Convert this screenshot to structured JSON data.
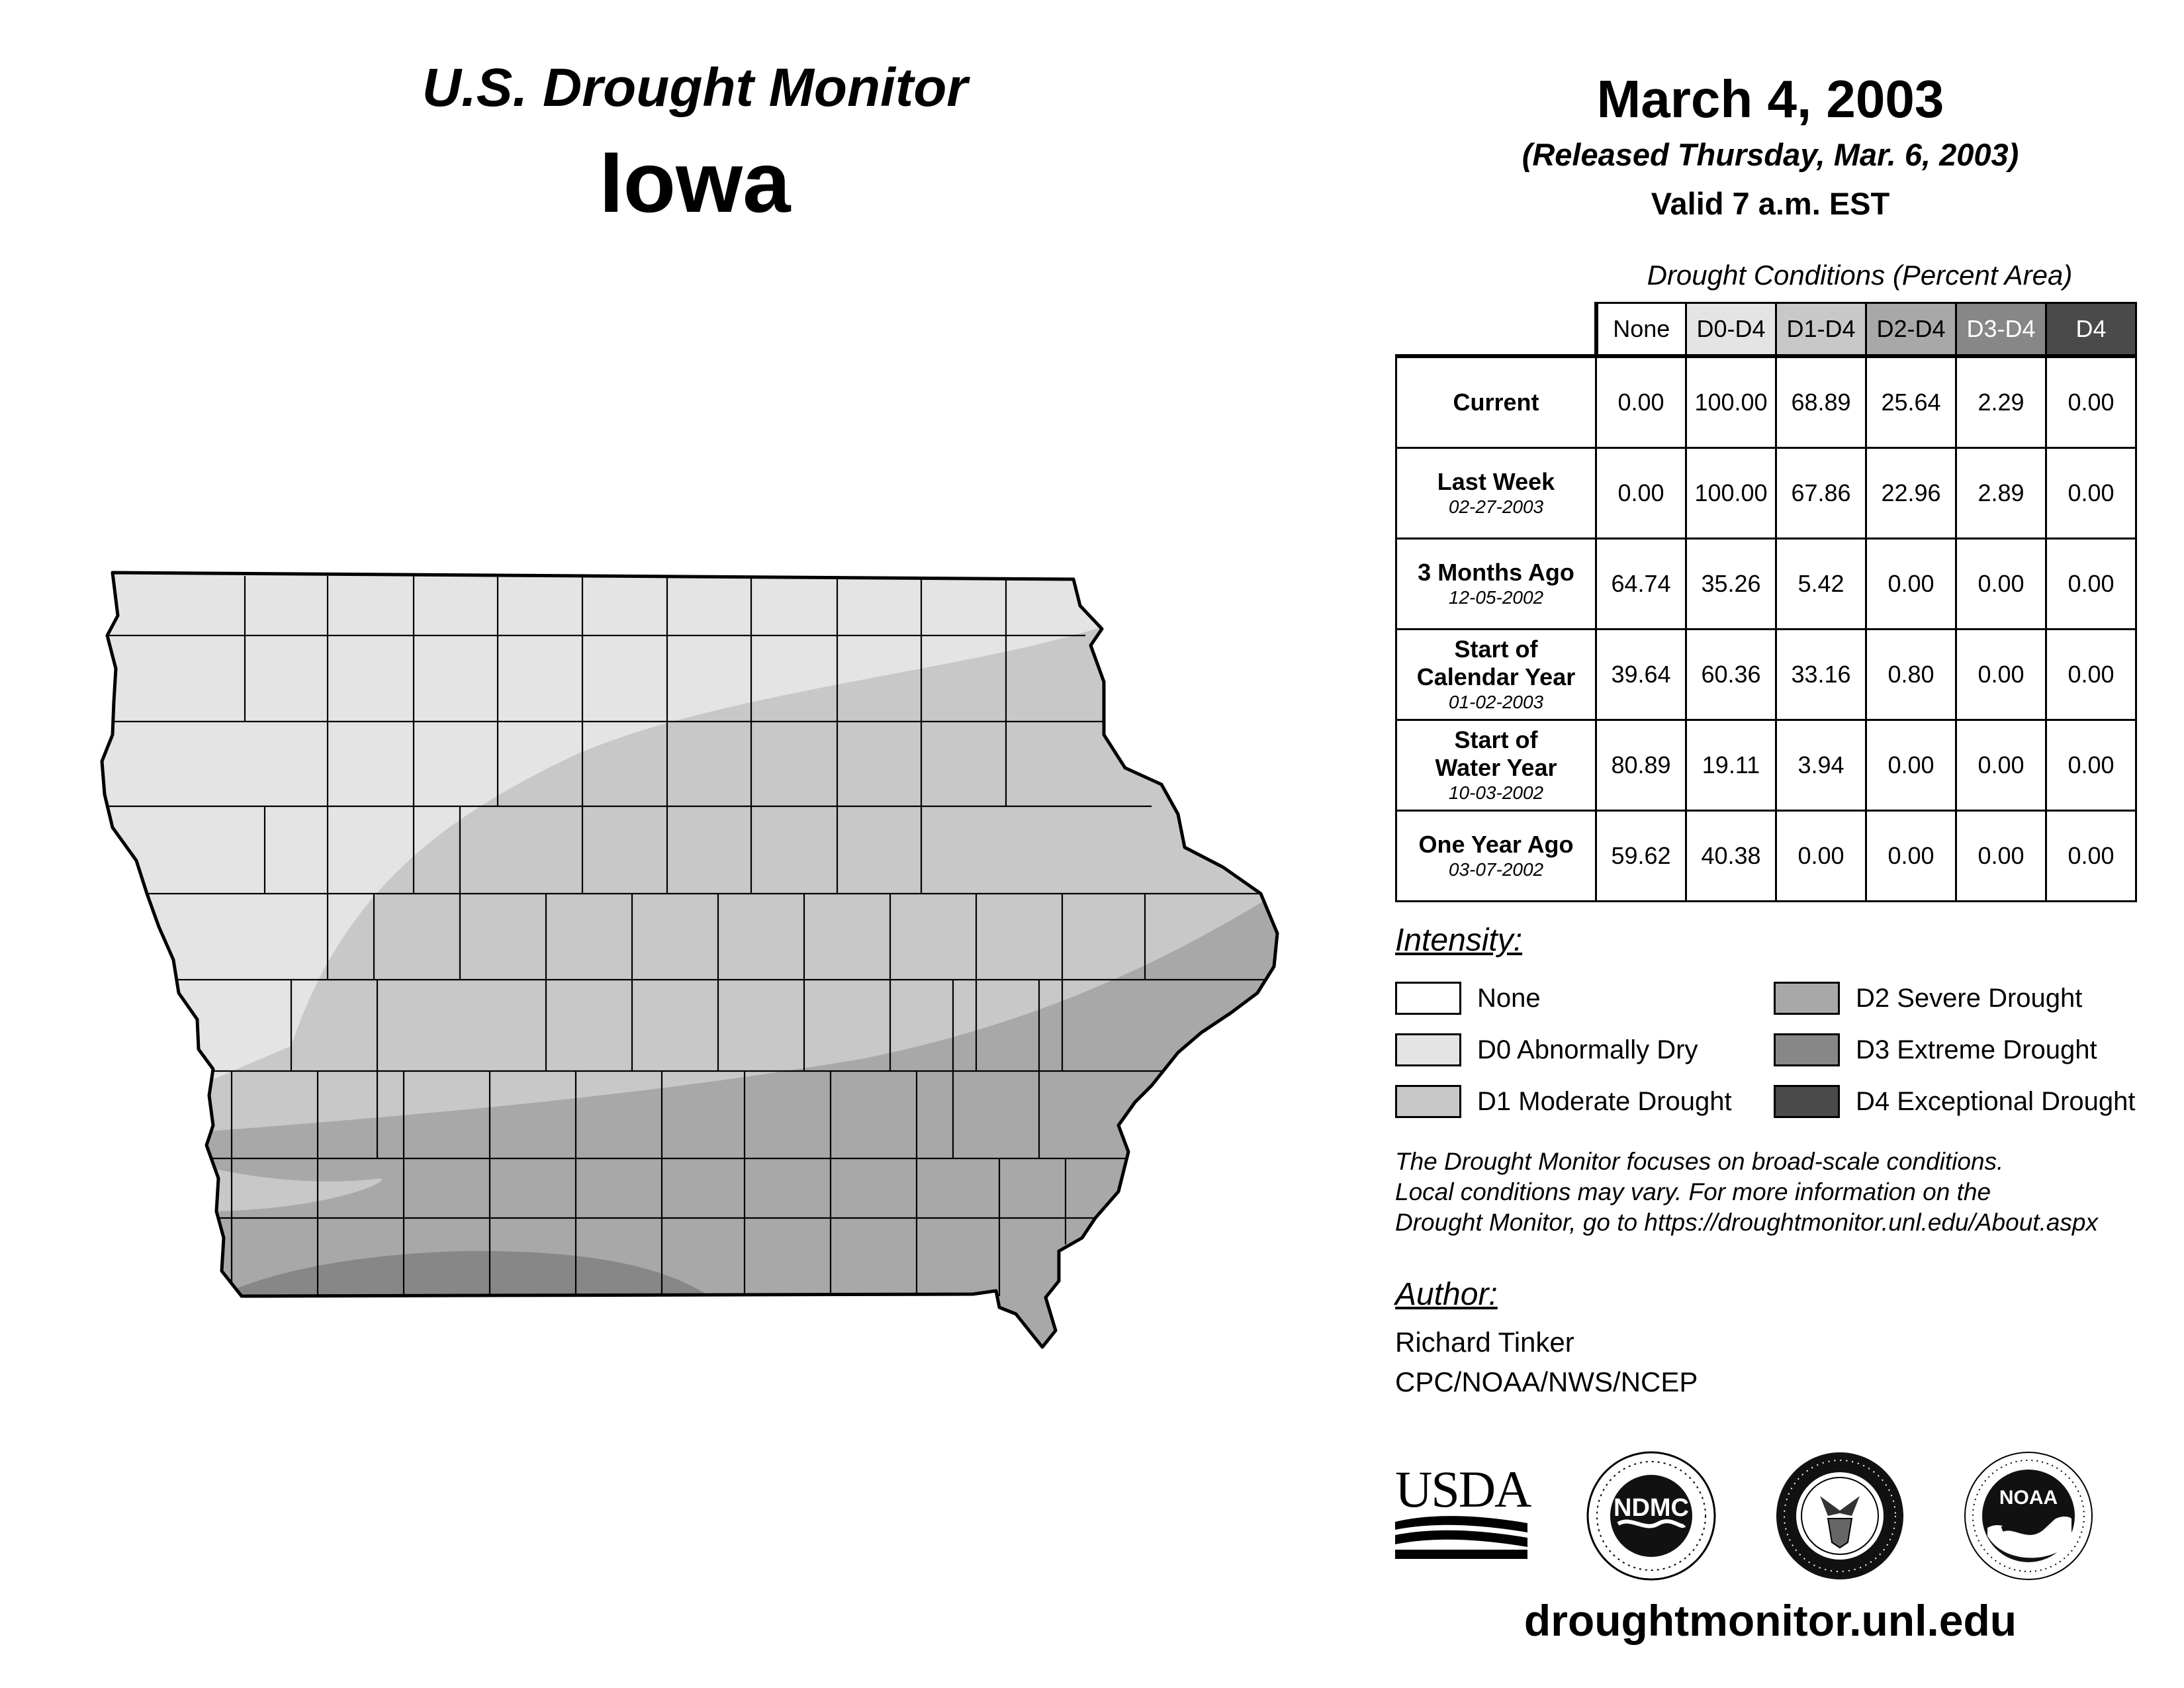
{
  "header": {
    "title": "U.S. Drought Monitor",
    "state": "Iowa",
    "date": "March 4, 2003",
    "released": "(Released Thursday, Mar. 6, 2003)",
    "valid": "Valid 7 a.m. EST"
  },
  "table": {
    "caption": "Drought Conditions (Percent Area)",
    "columns": [
      "None",
      "D0-D4",
      "D1-D4",
      "D2-D4",
      "D3-D4",
      "D4"
    ],
    "rows": [
      {
        "label": "Current",
        "sub": "",
        "values": [
          "0.00",
          "100.00",
          "68.89",
          "25.64",
          "2.29",
          "0.00"
        ]
      },
      {
        "label": "Last Week",
        "sub": "02-27-2003",
        "values": [
          "0.00",
          "100.00",
          "67.86",
          "22.96",
          "2.89",
          "0.00"
        ]
      },
      {
        "label": "3 Months Ago",
        "sub": "12-05-2002",
        "values": [
          "64.74",
          "35.26",
          "5.42",
          "0.00",
          "0.00",
          "0.00"
        ]
      },
      {
        "label": "Start of Calendar Year",
        "sub": "01-02-2003",
        "values": [
          "39.64",
          "60.36",
          "33.16",
          "0.80",
          "0.00",
          "0.00"
        ]
      },
      {
        "label": "Start of Water Year",
        "sub": "10-03-2002",
        "values": [
          "80.89",
          "19.11",
          "3.94",
          "0.00",
          "0.00",
          "0.00"
        ]
      },
      {
        "label": "One Year Ago",
        "sub": "03-07-2002",
        "values": [
          "59.62",
          "40.38",
          "0.00",
          "0.00",
          "0.00",
          "0.00"
        ]
      }
    ]
  },
  "legend": {
    "title": "Intensity:",
    "items": [
      {
        "label": "None",
        "color": "#ffffff"
      },
      {
        "label": "D0 Abnormally Dry",
        "color": "#e4e4e4"
      },
      {
        "label": "D1 Moderate Drought",
        "color": "#c8c8c8"
      },
      {
        "label": "D2 Severe Drought",
        "color": "#a8a8a8"
      },
      {
        "label": "D3 Extreme Drought",
        "color": "#878787"
      },
      {
        "label": "D4 Exceptional Drought",
        "color": "#4a4a4a"
      }
    ]
  },
  "note": {
    "line1": "The Drought Monitor focuses on broad-scale conditions.",
    "line2": "Local conditions may vary. For more information on the",
    "line3": "Drought Monitor, go to https://droughtmonitor.unl.edu/About.aspx"
  },
  "author": {
    "title": "Author:",
    "name": "Richard Tinker",
    "org": "CPC/NOAA/NWS/NCEP"
  },
  "logos": {
    "usda": "USDA",
    "ndmc": "NDMC",
    "noaa": "NOAA"
  },
  "website": "droughtmonitor.unl.edu"
}
